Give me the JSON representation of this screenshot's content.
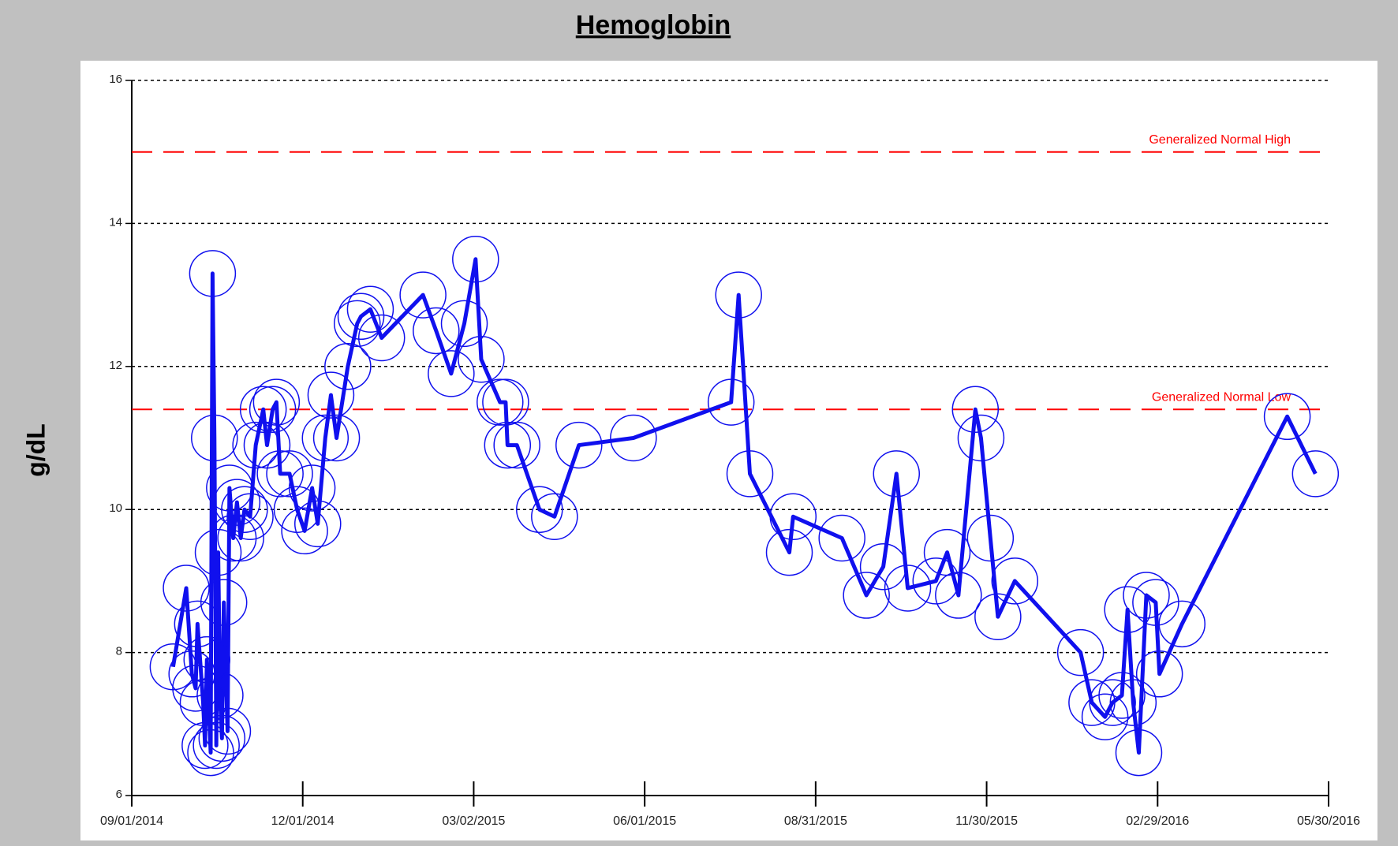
{
  "chart_data": {
    "type": "line",
    "title": "Hemoglobin",
    "y_label": "g/dL",
    "x": [
      "09/23/2014",
      "09/30/2014",
      "10/03/2014",
      "10/05/2014",
      "10/06/2014",
      "10/09/2014",
      "10/10/2014",
      "10/11/2014",
      "10/13/2014",
      "10/14/2014",
      "10/15/2014",
      "10/16/2014",
      "10/17/2014",
      "10/18/2014",
      "10/19/2014",
      "10/20/2014",
      "10/22/2014",
      "10/23/2014",
      "10/25/2014",
      "10/27/2014",
      "10/29/2014",
      "10/31/2014",
      "11/03/2014",
      "11/06/2014",
      "11/10/2014",
      "11/12/2014",
      "11/15/2014",
      "11/17/2014",
      "11/19/2014",
      "11/24/2014",
      "11/28/2014",
      "12/02/2014",
      "12/06/2014",
      "12/09/2014",
      "12/13/2014",
      "12/16/2014",
      "12/19/2014",
      "12/25/2014",
      "12/30/2014",
      "01/01/2015",
      "01/06/2015",
      "01/12/2015",
      "02/03/2015",
      "02/10/2015",
      "02/18/2015",
      "02/25/2015",
      "03/03/2015",
      "03/06/2015",
      "03/16/2015",
      "03/19/2015",
      "03/20/2015",
      "03/25/2015",
      "04/06/2015",
      "04/14/2015",
      "04/27/2015",
      "05/26/2015",
      "07/17/2015",
      "07/21/2015",
      "07/27/2015",
      "08/17/2015",
      "08/19/2015",
      "09/14/2015",
      "09/27/2015",
      "10/06/2015",
      "10/13/2015",
      "10/19/2015",
      "11/03/2015",
      "11/09/2015",
      "11/15/2015",
      "11/24/2015",
      "11/27/2015",
      "12/02/2015",
      "12/06/2015",
      "12/15/2015",
      "01/19/2016",
      "01/25/2016",
      "02/01/2016",
      "02/05/2016",
      "02/10/2016",
      "02/13/2016",
      "02/16/2016",
      "02/19/2016",
      "02/23/2016",
      "02/28/2016",
      "03/01/2016",
      "03/13/2016",
      "05/08/2016",
      "05/23/2016"
    ],
    "series": [
      {
        "name": "Hemoglobin",
        "color": "#1010ee",
        "values": [
          7.8,
          8.9,
          7.7,
          7.5,
          8.4,
          7.3,
          6.7,
          7.9,
          6.6,
          13.3,
          11.0,
          6.7,
          9.4,
          7.4,
          6.8,
          8.7,
          6.9,
          10.3,
          9.6,
          10.1,
          9.6,
          10.0,
          9.9,
          10.9,
          11.4,
          10.9,
          11.4,
          11.5,
          10.5,
          10.5,
          10.0,
          9.7,
          10.3,
          9.8,
          11.0,
          11.6,
          11.0,
          12.0,
          12.6,
          12.7,
          12.8,
          12.4,
          13.0,
          12.5,
          11.9,
          12.6,
          13.5,
          12.1,
          11.5,
          11.5,
          10.9,
          10.9,
          10.0,
          9.9,
          10.9,
          11.0,
          11.5,
          13.0,
          10.5,
          9.4,
          9.9,
          9.6,
          8.8,
          9.2,
          10.5,
          8.9,
          9.0,
          9.4,
          8.8,
          11.4,
          11.0,
          9.6,
          8.5,
          9.0,
          8.0,
          7.3,
          7.1,
          7.3,
          7.4,
          8.6,
          7.3,
          6.6,
          8.8,
          8.7,
          7.7,
          8.4,
          11.3,
          10.5
        ]
      }
    ],
    "reference_lines": [
      {
        "value": 15,
        "label": "Generalized Normal High",
        "color": "#ff0000"
      },
      {
        "value": 11.4,
        "label": "Generalized Normal Low",
        "color": "#ff0000"
      }
    ],
    "xlim": [
      "09/01/2014",
      "05/30/2016"
    ],
    "xticks": [
      "09/01/2014",
      "12/01/2014",
      "03/02/2015",
      "06/01/2015",
      "08/31/2015",
      "11/30/2015",
      "02/29/2016",
      "05/30/2016"
    ],
    "ylim": [
      6,
      16
    ],
    "yticks": [
      6,
      8,
      10,
      12,
      14,
      16
    ],
    "grid": true
  }
}
